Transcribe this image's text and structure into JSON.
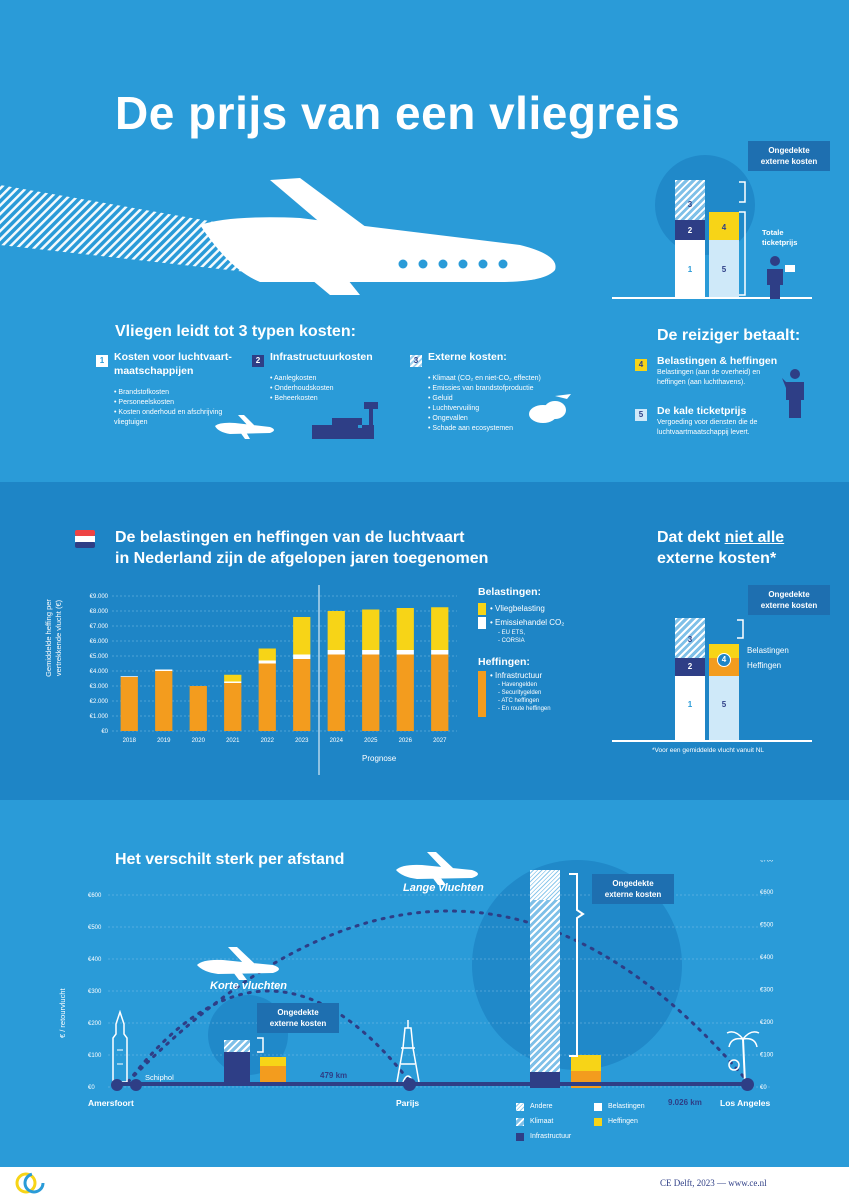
{
  "title": "De prijs van een vliegreis",
  "colors": {
    "bg": "#2A9BD8",
    "dark": "#1E85C6",
    "navy": "#2E3E86",
    "orange": "#F39C1E",
    "yellow": "#F7D417",
    "light": "#CFE9F9"
  },
  "intro": {
    "callout": "Ongedekte externe kosten",
    "total_label": "Totale ticketprijs",
    "bar_labels": [
      "1",
      "2",
      "3",
      "4",
      "5"
    ]
  },
  "costs": {
    "heading": "Vliegen leidt tot 3 typen kosten:",
    "types": [
      {
        "num": "1",
        "title": "Kosten voor luchtvaart-maatschappijen",
        "items": [
          "Brandstofkosten",
          "Personeelskosten",
          "Kosten onderhoud en afschrijving vliegtuigen"
        ]
      },
      {
        "num": "2",
        "title": "Infrastructuurkosten",
        "items": [
          "Aanlegkosten",
          "Onderhoudskosten",
          "Beheerkosten"
        ]
      },
      {
        "num": "3",
        "title": "Externe kosten:",
        "items": [
          "Klimaat (CO₂ en niet-CO₂ effecten)",
          "Emissies van brandstofproductie",
          "Geluid",
          "Luchtvervuiling",
          "Ongevallen",
          "Schade aan ecosystemen"
        ]
      }
    ]
  },
  "traveller": {
    "heading": "De reiziger betaalt:",
    "items": [
      {
        "num": "4",
        "title": "Belastingen & heffingen",
        "text": "Belastingen (aan de overheid) en heffingen (aan luchthavens)."
      },
      {
        "num": "5",
        "title": "De kale ticketprijs",
        "text": "Vergoeding voor diensten die de luchtvaartmaatschappij levert."
      }
    ]
  },
  "section2": {
    "heading_line1": "De belastingen en heffingen van de luchtvaart",
    "heading_line2": "in Nederland zijn de afgelopen jaren toegenomen",
    "ylabel_line1": "Gemiddelde heffing per",
    "ylabel_line2": "vertrekkende vlucht (€)",
    "prognose": "Prognose",
    "legend": {
      "belastingen": "Belastingen:",
      "vliegbelasting": "• Vliegbelasting",
      "emissiehandel": "• Emissiehandel CO₂",
      "emissie_sub": [
        "- EU ETS,",
        "- CORSIA"
      ],
      "heffingen": "Heffingen:",
      "infrastructuur": "• Infrastructuur",
      "infra_sub": [
        "- Havengelden",
        "- Securitygelden",
        "- ATC heffingen",
        "- En route heffingen"
      ]
    },
    "right_heading_pre": "Dat dekt ",
    "right_heading_u": "niet alle",
    "right_heading_post": "externe kosten*",
    "right_callout": "Ongedekte externe kosten",
    "right_belastingen": "Belastingen",
    "right_heffingen": "Heffingen",
    "footnote": "*Voor een gemiddelde vlucht vanuit NL"
  },
  "chart_data": {
    "type": "bar",
    "categories": [
      "2018",
      "2019",
      "2020",
      "2021",
      "2022",
      "2023",
      "2024",
      "2025",
      "2026",
      "2027"
    ],
    "series": [
      {
        "name": "Infrastructuur",
        "values": [
          3600,
          4000,
          3000,
          3200,
          4500,
          4800,
          5100,
          5100,
          5100,
          5100
        ]
      },
      {
        "name": "Emissiehandel CO₂",
        "values": [
          50,
          100,
          0,
          100,
          200,
          300,
          300,
          300,
          300,
          300
        ]
      },
      {
        "name": "Vliegbelasting",
        "values": [
          0,
          0,
          0,
          450,
          800,
          2500,
          2600,
          2700,
          2800,
          2850
        ]
      }
    ],
    "yticks": [
      "€0",
      "€1.000",
      "€2.000",
      "€3.000",
      "€4.000",
      "€5.000",
      "€6.000",
      "€7.000",
      "€8.000",
      "€9.000"
    ],
    "ylim": [
      0,
      9000
    ],
    "ylabel": "Gemiddelde heffing per vertrekkende vlucht (€)",
    "prognose_from": "2024"
  },
  "section3": {
    "heading": "Het verschilt sterk per afstand",
    "ylabel": "€ / retourvlucht",
    "left_ticks": [
      "€0",
      "€100",
      "€200",
      "€300",
      "€400",
      "€500",
      "€600"
    ],
    "right_ticks": [
      "€0",
      "€100",
      "€200",
      "€300",
      "€400",
      "€500",
      "€600",
      "€700"
    ],
    "short": "Korte vluchten",
    "long": "Lange vluchten",
    "callout": "Ongedekte externe kosten",
    "cities": {
      "amersfoort": "Amersfoort",
      "schiphol": "Schiphol",
      "parijs": "Parijs",
      "la": "Los Angeles"
    },
    "dist_short": "479 km",
    "dist_long": "9.026 km",
    "legend": [
      "Andere",
      "Klimaat",
      "Infrastructuur",
      "Belastingen",
      "Heffingen"
    ]
  },
  "footer": {
    "credit": "CE Delft, 2023 — www.ce.nl"
  }
}
